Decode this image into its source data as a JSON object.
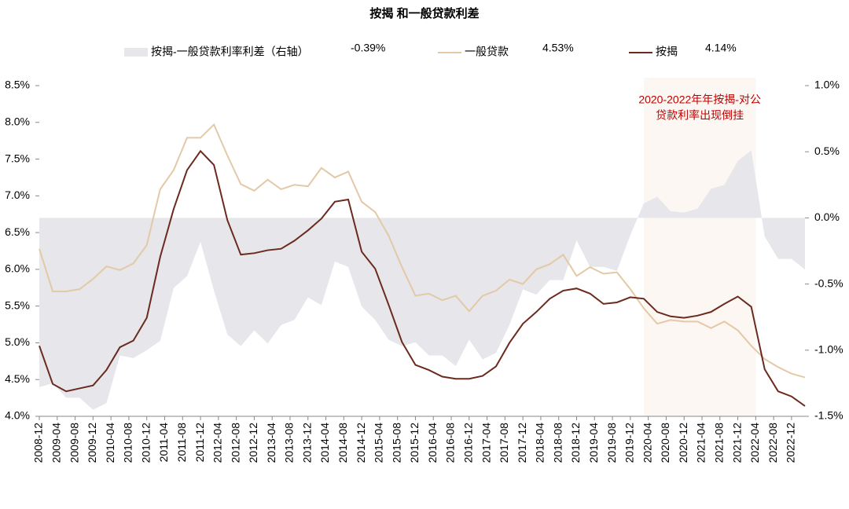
{
  "chart_data": {
    "type": "line",
    "title": "按揭 和一般贷款利差",
    "x": [
      "2008-12",
      "2009-03",
      "2009-06",
      "2009-09",
      "2009-12",
      "2010-03",
      "2010-06",
      "2010-09",
      "2010-12",
      "2011-03",
      "2011-06",
      "2011-09",
      "2011-12",
      "2012-03",
      "2012-06",
      "2012-09",
      "2012-12",
      "2013-03",
      "2013-06",
      "2013-09",
      "2013-12",
      "2014-03",
      "2014-06",
      "2014-09",
      "2014-12",
      "2015-03",
      "2015-06",
      "2015-09",
      "2015-12",
      "2016-03",
      "2016-06",
      "2016-09",
      "2016-12",
      "2017-03",
      "2017-06",
      "2017-09",
      "2017-12",
      "2018-03",
      "2018-06",
      "2018-09",
      "2018-12",
      "2019-03",
      "2019-06",
      "2019-09",
      "2019-12",
      "2020-03",
      "2020-06",
      "2020-09",
      "2020-12",
      "2021-03",
      "2021-06",
      "2021-09",
      "2021-12",
      "2022-03",
      "2022-06",
      "2022-09",
      "2022-12",
      "2023-03"
    ],
    "xlim": [
      "2008-12",
      "2023-03"
    ],
    "xticks": [
      "2008-12",
      "2009-04",
      "2009-08",
      "2009-12",
      "2010-04",
      "2010-08",
      "2010-12",
      "2011-04",
      "2011-08",
      "2011-12",
      "2012-04",
      "2012-08",
      "2012-12",
      "2013-04",
      "2013-08",
      "2013-12",
      "2014-04",
      "2014-08",
      "2014-12",
      "2015-04",
      "2015-08",
      "2015-12",
      "2016-04",
      "2016-08",
      "2016-12",
      "2017-04",
      "2017-08",
      "2017-12",
      "2018-04",
      "2018-08",
      "2018-12",
      "2019-04",
      "2019-08",
      "2019-12",
      "2020-04",
      "2020-08",
      "2020-12",
      "2021-04",
      "2021-08",
      "2021-12",
      "2022-04",
      "2022-08",
      "2022-12"
    ],
    "ylim": [
      4.0,
      8.5
    ],
    "yticks": [
      {
        "value": 4.0,
        "label": "4.0%"
      },
      {
        "value": 4.5,
        "label": "4.5%"
      },
      {
        "value": 5.0,
        "label": "5.0%"
      },
      {
        "value": 5.5,
        "label": "5.5%"
      },
      {
        "value": 6.0,
        "label": "6.0%"
      },
      {
        "value": 6.5,
        "label": "6.5%"
      },
      {
        "value": 7.0,
        "label": "7.0%"
      },
      {
        "value": 7.5,
        "label": "7.5%"
      },
      {
        "value": 8.0,
        "label": "8.0%"
      },
      {
        "value": 8.5,
        "label": "8.5%"
      }
    ],
    "y2lim": [
      -1.5,
      1.0
    ],
    "y2ticks": [
      {
        "value": 1.0,
        "label": "1.0%"
      },
      {
        "value": 0.5,
        "label": "0.5%"
      },
      {
        "value": 0.0,
        "label": "0.0%"
      },
      {
        "value": -0.5,
        "label": "-0.5%"
      },
      {
        "value": -1.0,
        "label": "-1.0%"
      },
      {
        "value": -1.5,
        "label": "-1.5%"
      }
    ],
    "series": [
      {
        "name": "按揭-一般贷款利率利差（右轴）",
        "latest": "-0.39%",
        "style": "area",
        "axis": "y2",
        "color": "#e6e6eb",
        "values": [
          -1.28,
          -1.25,
          -1.36,
          -1.36,
          -1.45,
          -1.4,
          -1.04,
          -1.06,
          -1.0,
          -0.93,
          -0.53,
          -0.44,
          -0.18,
          -0.55,
          -0.88,
          -0.97,
          -0.85,
          -0.95,
          -0.81,
          -0.77,
          -0.6,
          -0.66,
          -0.33,
          -0.37,
          -0.67,
          -0.77,
          -0.92,
          -0.97,
          -0.94,
          -1.04,
          -1.04,
          -1.12,
          -0.92,
          -1.07,
          -1.02,
          -0.81,
          -0.54,
          -0.58,
          -0.47,
          -0.47,
          -0.17,
          -0.37,
          -0.37,
          -0.4,
          -0.13,
          0.11,
          0.16,
          0.05,
          0.04,
          0.07,
          0.22,
          0.25,
          0.43,
          0.51,
          -0.14,
          -0.31,
          -0.31,
          -0.39
        ]
      },
      {
        "name": "一般贷款",
        "latest": "4.53%",
        "style": "line",
        "color": "#e3c9a6",
        "values": [
          6.28,
          5.7,
          5.7,
          5.73,
          5.87,
          6.04,
          5.99,
          6.08,
          6.33,
          7.09,
          7.35,
          7.79,
          7.79,
          7.97,
          7.55,
          7.16,
          7.07,
          7.22,
          7.09,
          7.15,
          7.13,
          7.38,
          7.25,
          7.33,
          6.92,
          6.78,
          6.46,
          6.03,
          5.64,
          5.67,
          5.58,
          5.64,
          5.43,
          5.64,
          5.71,
          5.86,
          5.8,
          6.0,
          6.07,
          6.2,
          5.91,
          6.03,
          5.94,
          5.96,
          5.73,
          5.47,
          5.26,
          5.31,
          5.29,
          5.29,
          5.2,
          5.29,
          5.17,
          4.96,
          4.78,
          4.67,
          4.58,
          4.53
        ]
      },
      {
        "name": "按揭",
        "latest": "4.14%",
        "style": "line",
        "color": "#6b2a1e",
        "values": [
          4.96,
          4.44,
          4.34,
          4.38,
          4.42,
          4.63,
          4.94,
          5.03,
          5.34,
          6.17,
          6.82,
          7.35,
          7.61,
          7.42,
          6.67,
          6.2,
          6.22,
          6.26,
          6.28,
          6.39,
          6.53,
          6.69,
          6.92,
          6.95,
          6.24,
          6.01,
          5.52,
          5.01,
          4.7,
          4.63,
          4.54,
          4.51,
          4.51,
          4.55,
          4.68,
          5.0,
          5.26,
          5.42,
          5.6,
          5.71,
          5.74,
          5.67,
          5.53,
          5.55,
          5.62,
          5.6,
          5.42,
          5.36,
          5.34,
          5.37,
          5.42,
          5.53,
          5.63,
          5.49,
          4.64,
          4.34,
          4.27,
          4.14
        ]
      }
    ],
    "highlight": {
      "from": "2020-03",
      "to": "2022-04",
      "color": "#fcf7f2",
      "text": [
        "2020-2022年年按揭-对公",
        "贷款利率出现倒挂"
      ],
      "text_color": "#c00000"
    }
  }
}
